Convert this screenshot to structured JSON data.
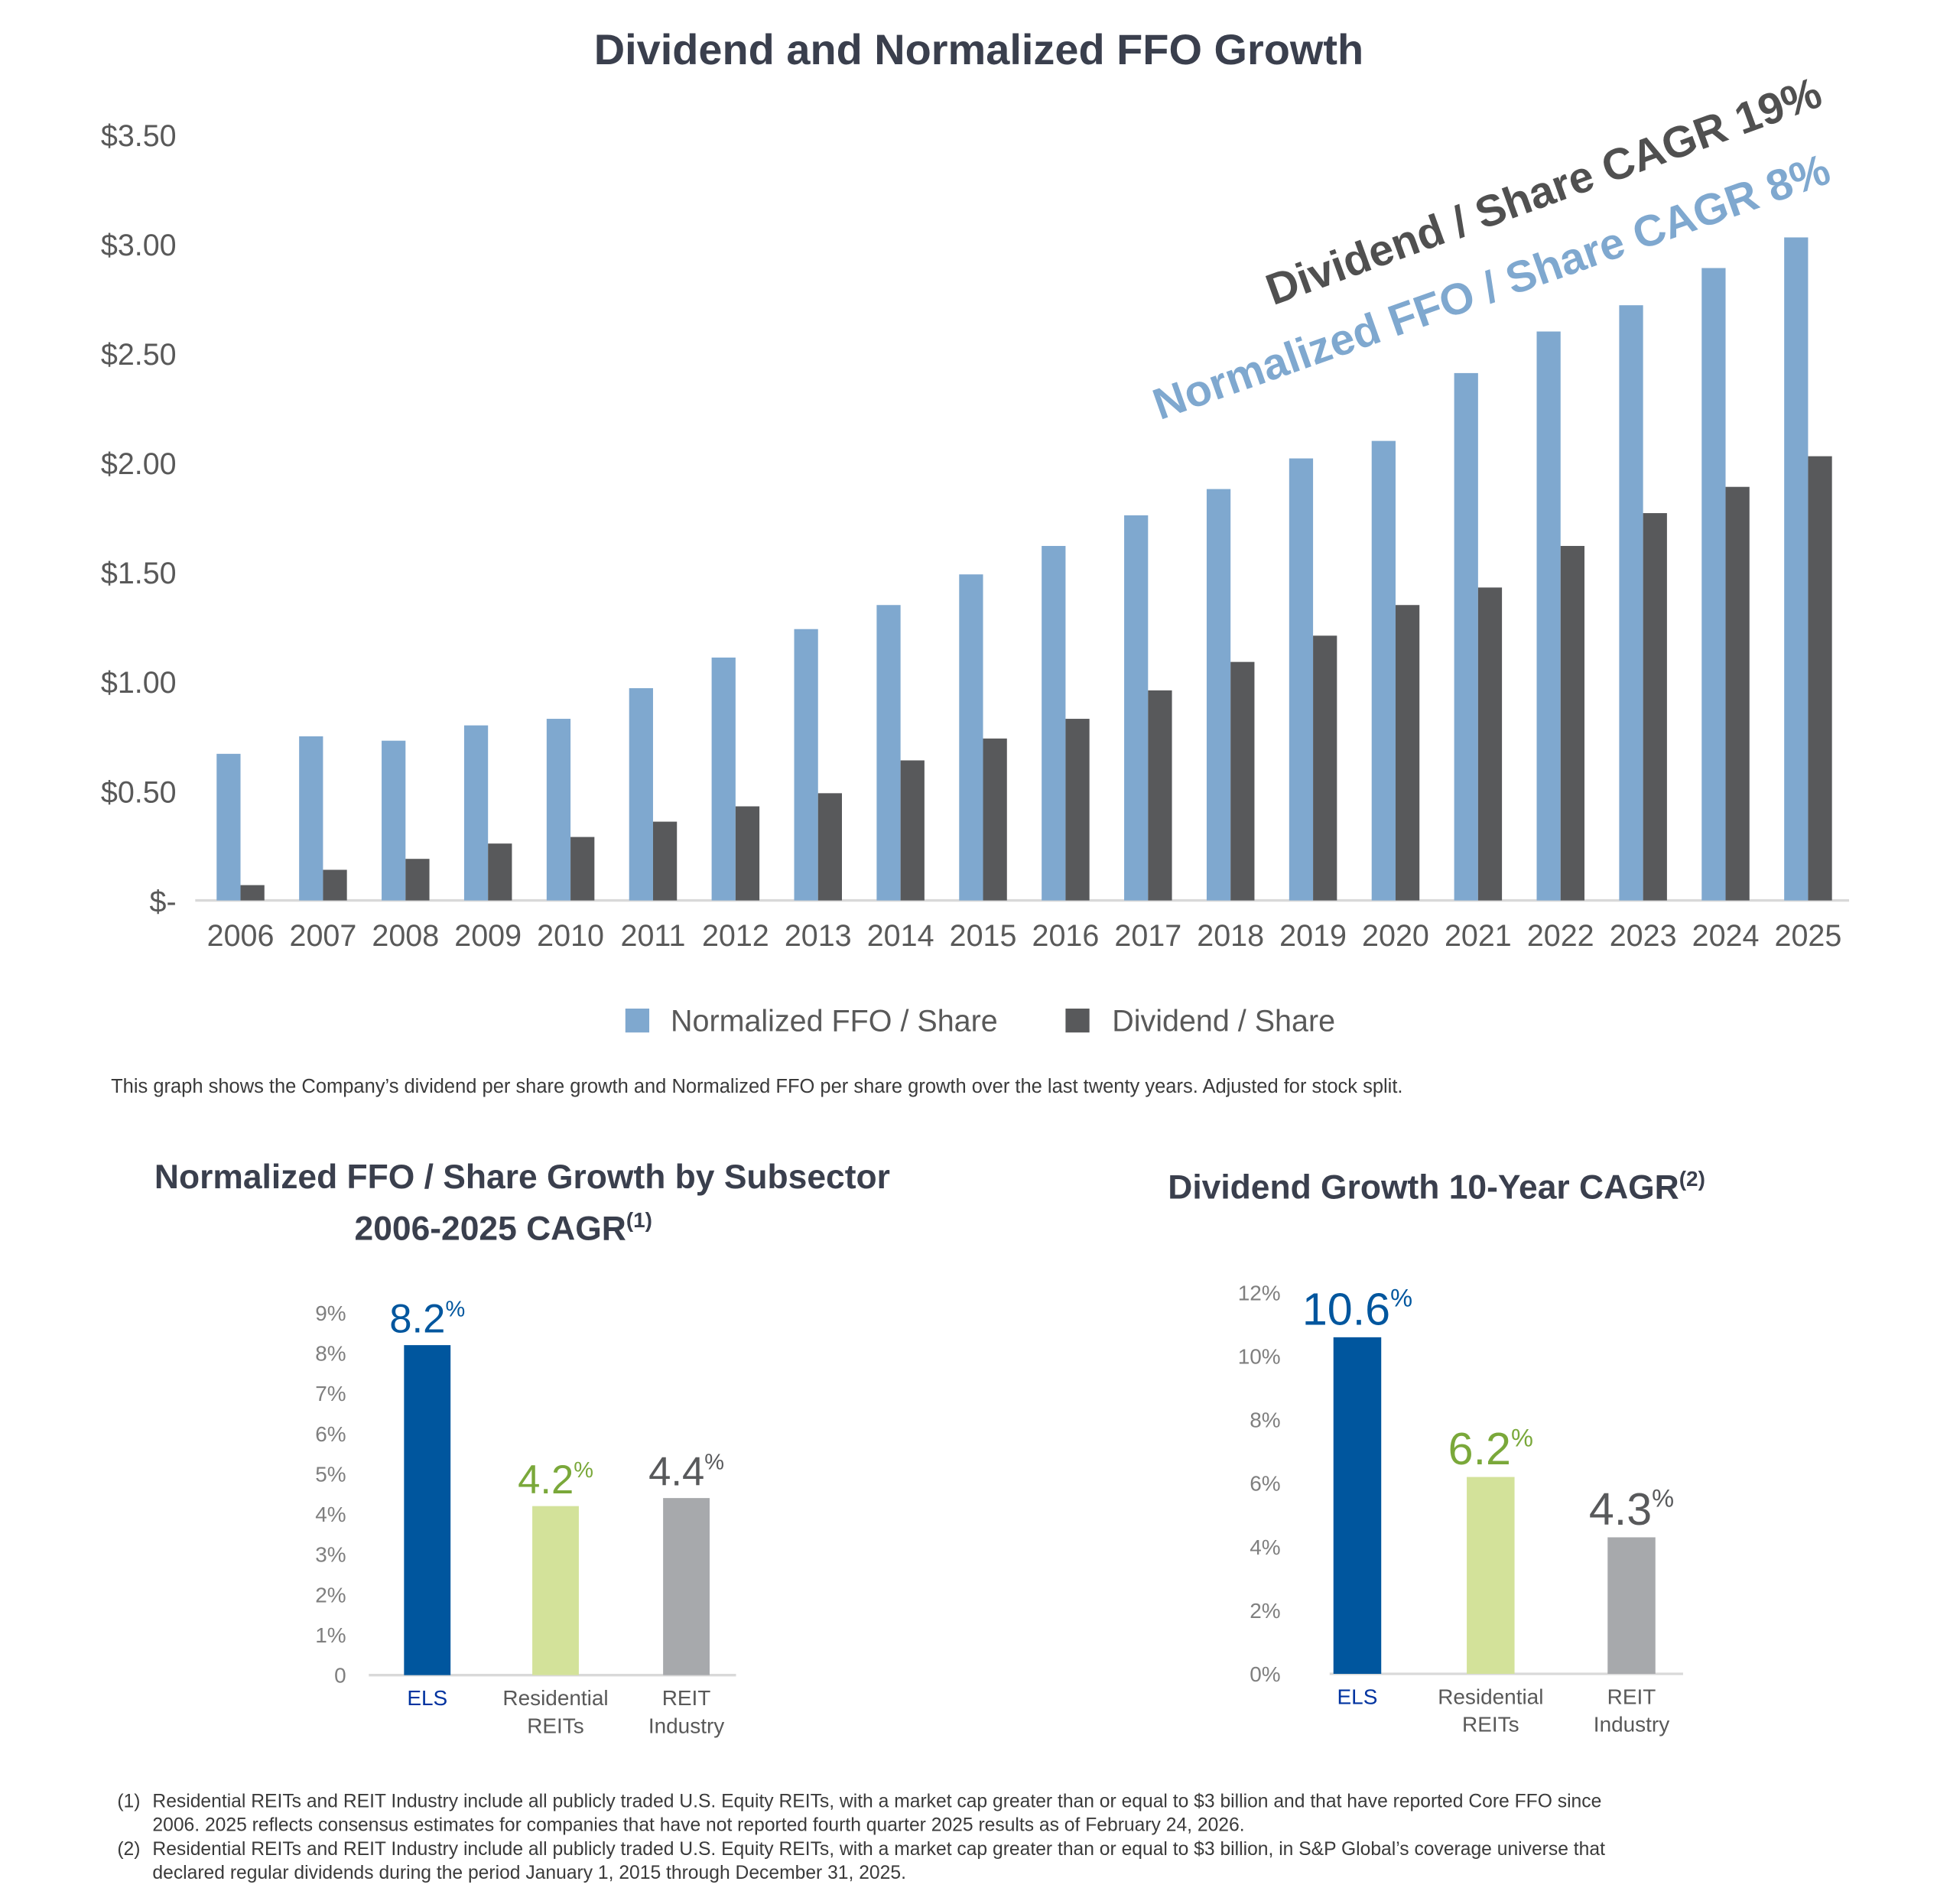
{
  "chart_data": [
    {
      "type": "bar",
      "title": "Dividend and Normalized FFO Growth",
      "categories": [
        "2006",
        "2007",
        "2008",
        "2009",
        "2010",
        "2011",
        "2012",
        "2013",
        "2014",
        "2015",
        "2016",
        "2017",
        "2018",
        "2019",
        "2020",
        "2021",
        "2022",
        "2023",
        "2024",
        "2025"
      ],
      "series": [
        {
          "name": "Normalized FFO / Share",
          "color": "#7fa8cf",
          "values": [
            0.67,
            0.75,
            0.73,
            0.8,
            0.83,
            0.97,
            1.11,
            1.24,
            1.35,
            1.49,
            1.62,
            1.76,
            1.88,
            2.02,
            2.1,
            2.41,
            2.6,
            2.72,
            2.89,
            3.03
          ]
        },
        {
          "name": "Dividend / Share",
          "color": "#58595b",
          "values": [
            0.07,
            0.14,
            0.19,
            0.26,
            0.29,
            0.36,
            0.43,
            0.49,
            0.64,
            0.74,
            0.83,
            0.96,
            1.09,
            1.21,
            1.35,
            1.43,
            1.62,
            1.77,
            1.89,
            2.03
          ]
        }
      ],
      "ylim": [
        0,
        3.5
      ],
      "yticks": [
        "$-",
        "$0.50",
        "$1.00",
        "$1.50",
        "$2.00",
        "$2.50",
        "$3.00",
        "$3.50"
      ],
      "grid": false,
      "legend": "bottom",
      "annotations": [
        "Dividend / Share CAGR 19%",
        "Normalized FFO / Share CAGR 8%"
      ]
    },
    {
      "type": "bar",
      "title": "Normalized FFO / Share Growth by Subsector",
      "subtitle": "2006-2025 CAGR",
      "title_note": "(1)",
      "categories": [
        "ELS",
        "Residential REITs",
        "REIT Industry"
      ],
      "category_lines": [
        [
          "ELS"
        ],
        [
          "Residential",
          "REITs"
        ],
        [
          "REIT",
          "Industry"
        ]
      ],
      "values": [
        8.2,
        4.2,
        4.4
      ],
      "value_labels": [
        "8.2",
        "4.2",
        "4.4"
      ],
      "colors": [
        "#00569e",
        "#d3e29a",
        "#a7a9ac"
      ],
      "label_colors": [
        "#00569e",
        "#7aa83a",
        "#58595b"
      ],
      "ylim": [
        0,
        9
      ],
      "yticks": [
        "0",
        "1%",
        "2%",
        "3%",
        "4%",
        "5%",
        "6%",
        "7%",
        "8%",
        "9%"
      ]
    },
    {
      "type": "bar",
      "title": "Dividend Growth 10-Year CAGR",
      "title_note": "(2)",
      "categories": [
        "ELS",
        "Residential REITs",
        "REIT Industry"
      ],
      "category_lines": [
        [
          "ELS"
        ],
        [
          "Residential",
          "REITs"
        ],
        [
          "REIT",
          "Industry"
        ]
      ],
      "values": [
        10.6,
        6.2,
        4.3
      ],
      "value_labels": [
        "10.6",
        "6.2",
        "4.3"
      ],
      "colors": [
        "#00569e",
        "#d3e29a",
        "#a7a9ac"
      ],
      "label_colors": [
        "#00569e",
        "#7aa83a",
        "#58595b"
      ],
      "ylim": [
        0,
        12
      ],
      "yticks": [
        "0%",
        "2%",
        "4%",
        "6%",
        "8%",
        "10%",
        "12%"
      ]
    }
  ],
  "percent_sign": "%",
  "caption": "This graph shows the Company’s dividend per share growth and Normalized FFO per share growth over the last twenty years. Adjusted for stock split.",
  "footnotes": [
    {
      "marker": "(1)",
      "lines": [
        "Residential REITs and REIT Industry include all publicly traded U.S. Equity REITs, with a market cap greater than or equal to $3 billion and that have reported Core FFO since",
        "2006. 2025 reflects consensus estimates for companies that have not reported fourth quarter 2025 results as of February 24, 2026."
      ]
    },
    {
      "marker": "(2)",
      "lines": [
        "Residential REITs and REIT Industry include all publicly traded U.S. Equity REITs, with a market cap greater than or equal to $3 billion, in S&P Global’s coverage universe that",
        "declared regular dividends during the period January 1, 2015 through December 31, 2025."
      ]
    }
  ]
}
